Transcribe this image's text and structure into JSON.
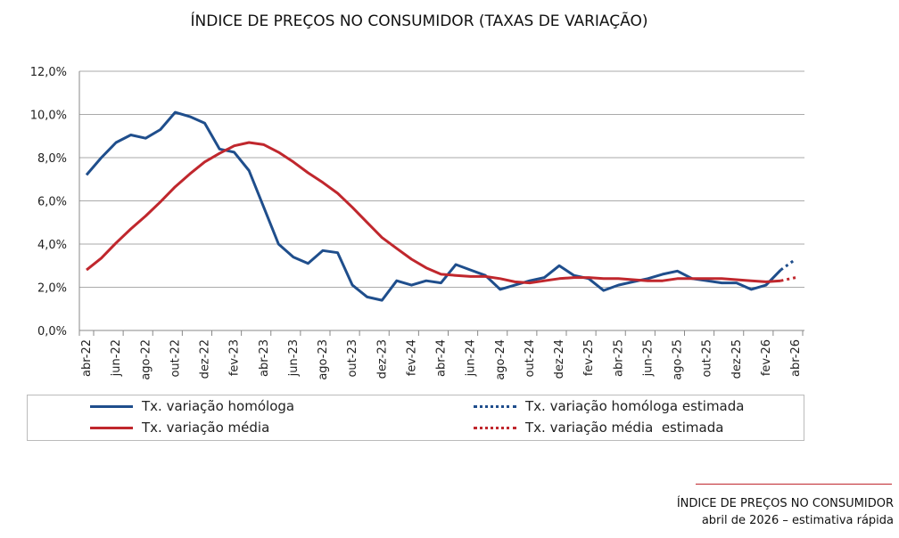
{
  "chart_data": {
    "type": "line",
    "title": "ÍNDICE DE PREÇOS NO CONSUMIDOR (TAXAS DE VARIAÇÃO)",
    "ylim": [
      0,
      12
    ],
    "yticks": [
      "0,0%",
      "2,0%",
      "4,0%",
      "6,0%",
      "8,0%",
      "10,0%",
      "12,0%"
    ],
    "xticks": [
      "abr-22",
      "jun-22",
      "ago-22",
      "out-22",
      "dez-22",
      "fev-23",
      "abr-23",
      "jun-23",
      "ago-23",
      "out-23",
      "dez-23",
      "fev-24",
      "abr-24",
      "jun-24",
      "ago-24",
      "out-24",
      "dez-24",
      "fev-25",
      "abr-25",
      "jun-25",
      "ago-25",
      "out-25",
      "dez-25",
      "fev-26",
      "abr-26"
    ],
    "grid": true,
    "series": [
      {
        "name": "Tx. variação homóloga",
        "color": "#1f4e8c",
        "style": "solid",
        "values": [
          7.2,
          8.0,
          8.7,
          9.05,
          8.9,
          9.3,
          10.1,
          9.9,
          9.6,
          8.4,
          8.25,
          7.4,
          5.7,
          4.0,
          3.4,
          3.1,
          3.7,
          3.6,
          2.1,
          1.55,
          1.4,
          2.3,
          2.1,
          2.3,
          2.2,
          3.05,
          2.8,
          2.55,
          1.9,
          2.1,
          2.3,
          2.45,
          3.0,
          2.55,
          2.4,
          1.85,
          2.1,
          2.25,
          2.4,
          2.6,
          2.75,
          2.4,
          2.3,
          2.2,
          2.2,
          1.9,
          2.1,
          2.8,
          null
        ]
      },
      {
        "name": "Tx. variação homóloga estimada",
        "color": "#1f4e8c",
        "style": "dotted",
        "values": [
          null,
          null,
          null,
          null,
          null,
          null,
          null,
          null,
          null,
          null,
          null,
          null,
          null,
          null,
          null,
          null,
          null,
          null,
          null,
          null,
          null,
          null,
          null,
          null,
          null,
          null,
          null,
          null,
          null,
          null,
          null,
          null,
          null,
          null,
          null,
          null,
          null,
          null,
          null,
          null,
          null,
          null,
          null,
          null,
          null,
          null,
          null,
          2.8,
          3.3
        ]
      },
      {
        "name": "Tx. variação média",
        "color": "#c0272d",
        "style": "solid",
        "values": [
          2.8,
          3.35,
          4.05,
          4.7,
          5.3,
          5.95,
          6.65,
          7.25,
          7.8,
          8.2,
          8.55,
          8.7,
          8.6,
          8.25,
          7.8,
          7.3,
          6.85,
          6.35,
          5.7,
          5.0,
          4.3,
          3.8,
          3.3,
          2.9,
          2.6,
          2.55,
          2.5,
          2.5,
          2.4,
          2.25,
          2.2,
          2.3,
          2.4,
          2.45,
          2.45,
          2.4,
          2.4,
          2.35,
          2.3,
          2.3,
          2.4,
          2.4,
          2.4,
          2.4,
          2.35,
          2.3,
          2.25,
          2.3,
          null
        ]
      },
      {
        "name": "Tx. variação média  estimada",
        "color": "#c0272d",
        "style": "dotted",
        "values": [
          null,
          null,
          null,
          null,
          null,
          null,
          null,
          null,
          null,
          null,
          null,
          null,
          null,
          null,
          null,
          null,
          null,
          null,
          null,
          null,
          null,
          null,
          null,
          null,
          null,
          null,
          null,
          null,
          null,
          null,
          null,
          null,
          null,
          null,
          null,
          null,
          null,
          null,
          null,
          null,
          null,
          null,
          null,
          null,
          null,
          null,
          null,
          2.3,
          2.45
        ]
      }
    ],
    "legend_placement": "bottom"
  },
  "footer": {
    "line1": "ÍNDICE DE PREÇOS NO CONSUMIDOR",
    "line2": "abril de 2026 – estimativa rápida"
  }
}
